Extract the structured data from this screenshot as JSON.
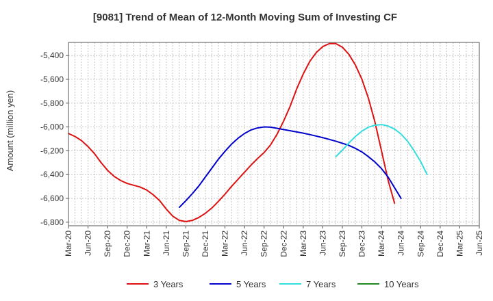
{
  "chart_data": {
    "type": "line",
    "title": "[9081]  Trend of Mean of 12-Month Moving Sum of Investing CF",
    "xlabel": "",
    "ylabel": "Amount (million yen)",
    "ylim": [
      -6830,
      -5290
    ],
    "yticks": [
      -5400,
      -5600,
      -5800,
      -6000,
      -6200,
      -6400,
      -6600,
      -6800
    ],
    "ytick_labels": [
      "-5,400",
      "-5,600",
      "-5,800",
      "-6,000",
      "-6,200",
      "-6,400",
      "-6,600",
      "-6,800"
    ],
    "xticks": [
      "Mar-20",
      "Jun-20",
      "Sep-20",
      "Dec-20",
      "Mar-21",
      "Jun-21",
      "Sep-21",
      "Dec-21",
      "Mar-22",
      "Jun-22",
      "Sep-22",
      "Dec-22",
      "Mar-23",
      "Jun-23",
      "Sep-23",
      "Dec-23",
      "Mar-24",
      "Jun-24",
      "Sep-24",
      "Dec-24",
      "Mar-25",
      "Jun-25"
    ],
    "grid": true,
    "legend_position": "bottom",
    "series": [
      {
        "name": "3 Years",
        "color": "#dd1111",
        "start": "Mar-20",
        "values": [
          -6055,
          -6080,
          -6115,
          -6165,
          -6225,
          -6300,
          -6365,
          -6415,
          -6450,
          -6475,
          -6490,
          -6505,
          -6530,
          -6570,
          -6620,
          -6690,
          -6750,
          -6785,
          -6795,
          -6785,
          -6760,
          -6725,
          -6680,
          -6625,
          -6565,
          -6500,
          -6440,
          -6380,
          -6320,
          -6265,
          -6215,
          -6150,
          -6060,
          -5950,
          -5825,
          -5680,
          -5555,
          -5450,
          -5375,
          -5325,
          -5300,
          -5300,
          -5330,
          -5390,
          -5480,
          -5600,
          -5760,
          -5960,
          -6200,
          -6445,
          -6640
        ]
      },
      {
        "name": "5 Years",
        "color": "#0000cc",
        "start": "Aug-21",
        "values": [
          -6675,
          -6620,
          -6560,
          -6495,
          -6420,
          -6345,
          -6270,
          -6205,
          -6145,
          -6095,
          -6055,
          -6025,
          -6008,
          -6000,
          -6002,
          -6012,
          -6022,
          -6032,
          -6042,
          -6052,
          -6064,
          -6077,
          -6090,
          -6105,
          -6120,
          -6137,
          -6155,
          -6180,
          -6210,
          -6250,
          -6295,
          -6350,
          -6420,
          -6510,
          -6600
        ]
      },
      {
        "name": "7 Years",
        "color": "#33dddd",
        "start": "Aug-23",
        "values": [
          -6250,
          -6195,
          -6135,
          -6080,
          -6035,
          -6002,
          -5985,
          -5980,
          -5992,
          -6018,
          -6060,
          -6120,
          -6200,
          -6290,
          -6400
        ]
      },
      {
        "name": "10 Years",
        "color": "#228822",
        "start": "",
        "values": []
      }
    ]
  }
}
